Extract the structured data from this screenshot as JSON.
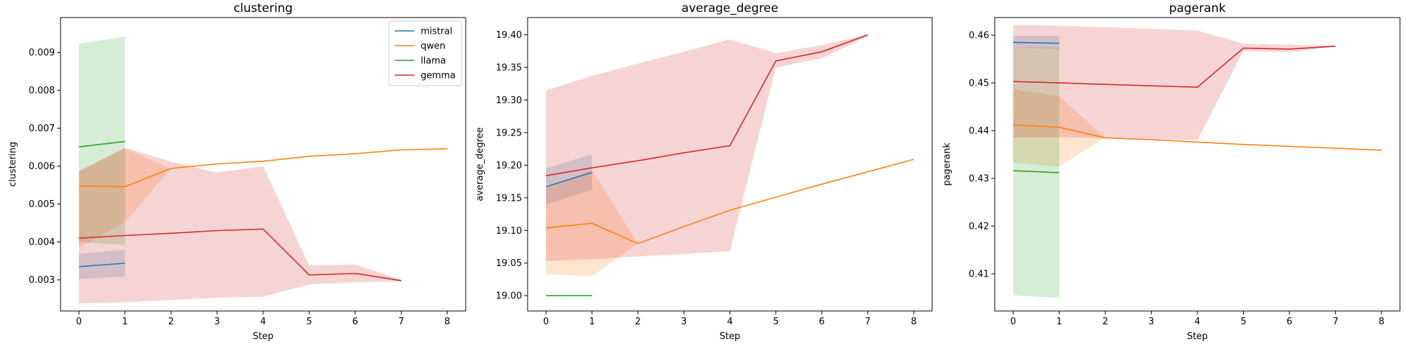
{
  "chart_data": [
    {
      "type": "line",
      "title": "clustering",
      "xlabel": "Step",
      "ylabel": "clustering",
      "xlim": [
        -0.4,
        8.4
      ],
      "ylim": [
        0.00218,
        0.00992
      ],
      "xticks": [
        0,
        1,
        2,
        3,
        4,
        5,
        6,
        7,
        8
      ],
      "xtick_labels": [
        "0",
        "1",
        "2",
        "3",
        "4",
        "5",
        "6",
        "7",
        "8"
      ],
      "yticks": [
        0.003,
        0.004,
        0.005,
        0.006,
        0.007,
        0.008,
        0.009
      ],
      "ytick_labels": [
        "0.003",
        "0.004",
        "0.005",
        "0.006",
        "0.007",
        "0.008",
        "0.009"
      ],
      "legend": {
        "placement": "upper right",
        "entries": [
          "mistral",
          "qwen",
          "llama",
          "gemma"
        ]
      },
      "series": [
        {
          "name": "mistral",
          "color": "#1f77b4",
          "x": [
            0,
            1
          ],
          "y": [
            0.00335,
            0.00344
          ],
          "lower": [
            0.00302,
            0.00309
          ],
          "upper": [
            0.00369,
            0.0038
          ]
        },
        {
          "name": "qwen",
          "color": "#ff7f0e",
          "x": [
            0,
            1,
            2,
            3,
            4,
            5,
            6,
            7,
            8
          ],
          "y": [
            0.00548,
            0.00546,
            0.00594,
            0.00606,
            0.00613,
            0.00626,
            0.00633,
            0.00643,
            0.00646
          ],
          "lower": [
            0.00385,
            0.00452,
            0.00594,
            0.00606,
            0.00613,
            0.00626,
            0.00633,
            0.00643,
            0.00646
          ],
          "upper": [
            0.00587,
            0.00646,
            0.00594,
            0.00606,
            0.00613,
            0.00626,
            0.00633,
            0.00643,
            0.00646
          ]
        },
        {
          "name": "llama",
          "color": "#2ca02c",
          "x": [
            0,
            1
          ],
          "y": [
            0.00651,
            0.00665
          ],
          "lower": [
            0.004,
            0.00392
          ],
          "upper": [
            0.00923,
            0.00942
          ]
        },
        {
          "name": "gemma",
          "color": "#d62728",
          "x": [
            0,
            1,
            2,
            3,
            4,
            5,
            6,
            7
          ],
          "y": [
            0.0041,
            0.00417,
            0.00423,
            0.0043,
            0.00434,
            0.00313,
            0.00317,
            0.00298
          ],
          "lower": [
            0.00238,
            0.00241,
            0.00247,
            0.00253,
            0.00256,
            0.00288,
            0.00294,
            0.00296
          ],
          "upper": [
            0.00586,
            0.00649,
            0.00612,
            0.00583,
            0.006,
            0.00338,
            0.00341,
            0.003
          ]
        }
      ]
    },
    {
      "type": "line",
      "title": "average_degree",
      "xlabel": "Step",
      "ylabel": "average_degree",
      "xlim": [
        -0.4,
        8.4
      ],
      "ylim": [
        18.9765,
        19.4265
      ],
      "xticks": [
        0,
        1,
        2,
        3,
        4,
        5,
        6,
        7,
        8
      ],
      "xtick_labels": [
        "0",
        "1",
        "2",
        "3",
        "4",
        "5",
        "6",
        "7",
        "8"
      ],
      "yticks": [
        19.0,
        19.05,
        19.1,
        19.15,
        19.2,
        19.25,
        19.3,
        19.35,
        19.4
      ],
      "ytick_labels": [
        "19.00",
        "19.05",
        "19.10",
        "19.15",
        "19.20",
        "19.25",
        "19.30",
        "19.35",
        "19.40"
      ],
      "legend": null,
      "series": [
        {
          "name": "mistral",
          "color": "#1f77b4",
          "x": [
            0,
            1
          ],
          "y": [
            19.167,
            19.189
          ],
          "lower": [
            19.14,
            19.162
          ],
          "upper": [
            19.195,
            19.217
          ]
        },
        {
          "name": "qwen",
          "color": "#ff7f0e",
          "x": [
            0,
            1,
            2,
            3,
            4,
            5,
            6,
            7,
            8
          ],
          "y": [
            19.104,
            19.111,
            19.08,
            19.106,
            19.131,
            19.151,
            19.171,
            19.19,
            19.209
          ],
          "lower": [
            19.033,
            19.03,
            19.08,
            19.106,
            19.131,
            19.151,
            19.171,
            19.19,
            19.209
          ],
          "upper": [
            19.165,
            19.193,
            19.08,
            19.106,
            19.131,
            19.151,
            19.171,
            19.19,
            19.209
          ]
        },
        {
          "name": "llama",
          "color": "#2ca02c",
          "x": [
            0,
            1
          ],
          "y": [
            19.0,
            19.0
          ],
          "lower": [
            19.0,
            19.0
          ],
          "upper": [
            19.0,
            19.0
          ]
        },
        {
          "name": "gemma",
          "color": "#d62728",
          "x": [
            0,
            1,
            2,
            3,
            4,
            5,
            6,
            7
          ],
          "y": [
            19.184,
            19.196,
            19.207,
            19.219,
            19.23,
            19.36,
            19.374,
            19.4
          ],
          "lower": [
            19.053,
            19.056,
            19.06,
            19.064,
            19.068,
            19.35,
            19.364,
            19.398
          ],
          "upper": [
            19.315,
            19.337,
            19.356,
            19.374,
            19.393,
            19.372,
            19.384,
            19.401
          ]
        }
      ]
    },
    {
      "type": "line",
      "title": "pagerank",
      "xlabel": "Step",
      "ylabel": "pagerank",
      "xlim": [
        -0.4,
        8.4
      ],
      "ylim": [
        0.4022,
        0.4637
      ],
      "xticks": [
        0,
        1,
        2,
        3,
        4,
        5,
        6,
        7,
        8
      ],
      "xtick_labels": [
        "0",
        "1",
        "2",
        "3",
        "4",
        "5",
        "6",
        "7",
        "8"
      ],
      "yticks": [
        0.41,
        0.42,
        0.43,
        0.44,
        0.45,
        0.46
      ],
      "ytick_labels": [
        "0.41",
        "0.42",
        "0.43",
        "0.44",
        "0.45",
        "0.46"
      ],
      "legend": null,
      "series": [
        {
          "name": "mistral",
          "color": "#1f77b4",
          "x": [
            0,
            1
          ],
          "y": [
            0.4585,
            0.4583
          ],
          "lower": [
            0.4575,
            0.4571
          ],
          "upper": [
            0.4599,
            0.4599
          ]
        },
        {
          "name": "qwen",
          "color": "#ff7f0e",
          "x": [
            0,
            1,
            2,
            3,
            4,
            5,
            6,
            7,
            8
          ],
          "y": [
            0.4412,
            0.4407,
            0.4385,
            0.4381,
            0.4376,
            0.4371,
            0.4367,
            0.4363,
            0.4359
          ],
          "lower": [
            0.4333,
            0.4325,
            0.4385,
            0.4381,
            0.4376,
            0.4371,
            0.4367,
            0.4363,
            0.4359
          ],
          "upper": [
            0.4487,
            0.4472,
            0.4385,
            0.4381,
            0.4376,
            0.4371,
            0.4367,
            0.4363,
            0.4359
          ]
        },
        {
          "name": "llama",
          "color": "#2ca02c",
          "x": [
            0,
            1
          ],
          "y": [
            0.4316,
            0.4312
          ],
          "lower": [
            0.4055,
            0.4049
          ],
          "upper": [
            0.4575,
            0.4574
          ]
        },
        {
          "name": "gemma",
          "color": "#d62728",
          "x": [
            0,
            1,
            2,
            3,
            4,
            5,
            6,
            7
          ],
          "y": [
            0.4503,
            0.45,
            0.4497,
            0.4494,
            0.4491,
            0.4573,
            0.4571,
            0.4577
          ],
          "lower": [
            0.4386,
            0.4386,
            0.4384,
            0.4382,
            0.438,
            0.4567,
            0.4565,
            0.4576
          ],
          "upper": [
            0.4622,
            0.462,
            0.4617,
            0.4613,
            0.461,
            0.4582,
            0.458,
            0.4578
          ]
        }
      ]
    }
  ]
}
